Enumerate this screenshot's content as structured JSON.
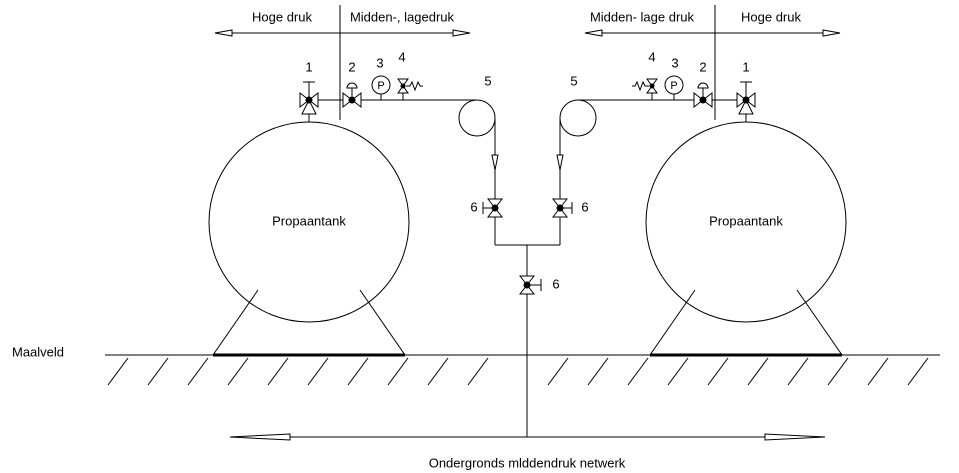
{
  "left": {
    "pressure_labels": [
      "Hoge druk",
      "Midden-, lagedruk"
    ],
    "component_labels": [
      "1",
      "2",
      "3",
      "4",
      "5"
    ],
    "gauge": "P",
    "tank": "Propaantank"
  },
  "right": {
    "pressure_labels": [
      "Midden- lage druk",
      "Hoge druk"
    ],
    "component_labels": [
      "4",
      "3",
      "2",
      "1",
      "5"
    ],
    "gauge": "P",
    "tank": "Propaantank"
  },
  "valve_labels": [
    "6",
    "6",
    "6"
  ],
  "ground": "Maalveld",
  "network": "Ondergronds mlddendruk netwerk"
}
